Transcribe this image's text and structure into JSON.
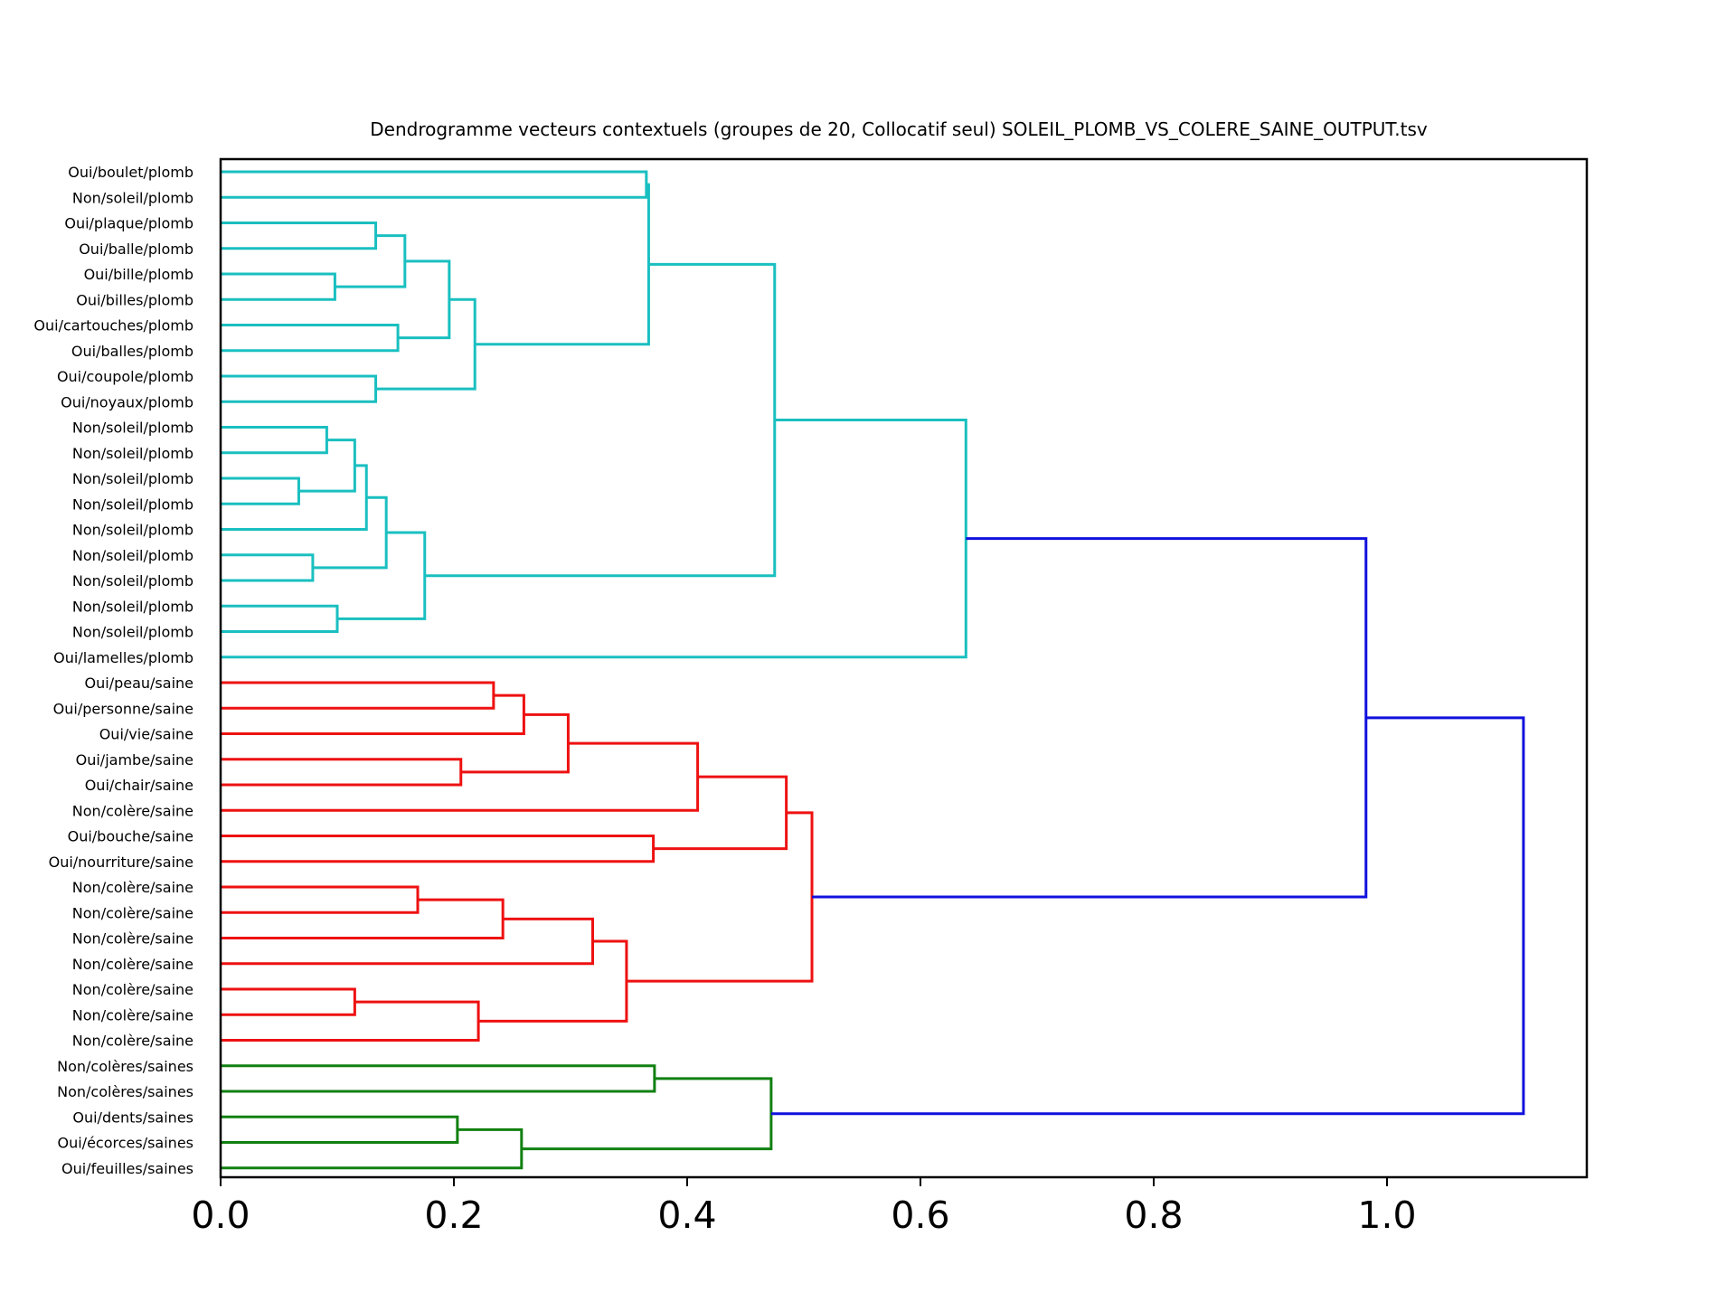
{
  "chart_data": {
    "type": "dendrogram",
    "orientation": "horizontal",
    "title": "Dendrogramme vecteurs contextuels (groupes de 20, Collocatif seul) SOLEIL_PLOMB_VS_COLERE_SAINE_OUTPUT.tsv",
    "xlim": [
      0,
      1.17
    ],
    "xticks": [
      "0.0",
      "0.2",
      "0.4",
      "0.6",
      "0.8",
      "1.0"
    ],
    "xtick_values": [
      0,
      0.2,
      0.4,
      0.6,
      0.8,
      1.0
    ],
    "colors": {
      "cyan": "#1abfc0",
      "red": "#ee1111",
      "green": "#118011",
      "blue": "#1111dd"
    },
    "leaves": [
      "Oui/boulet/plomb",
      "Non/soleil/plomb",
      "Oui/plaque/plomb",
      "Oui/balle/plomb",
      "Oui/bille/plomb",
      "Oui/billes/plomb",
      "Oui/cartouches/plomb",
      "Oui/balles/plomb",
      "Oui/coupole/plomb",
      "Oui/noyaux/plomb",
      "Non/soleil/plomb",
      "Non/soleil/plomb",
      "Non/soleil/plomb",
      "Non/soleil/plomb",
      "Non/soleil/plomb",
      "Non/soleil/plomb",
      "Non/soleil/plomb",
      "Non/soleil/plomb",
      "Non/soleil/plomb",
      "Oui/lamelles/plomb",
      "Oui/peau/saine",
      "Oui/personne/saine",
      "Oui/vie/saine",
      "Oui/jambe/saine",
      "Oui/chair/saine",
      "Non/colère/saine",
      "Oui/bouche/saine",
      "Oui/nourriture/saine",
      "Non/colère/saine",
      "Non/colère/saine",
      "Non/colère/saine",
      "Non/colère/saine",
      "Non/colère/saine",
      "Non/colère/saine",
      "Non/colère/saine",
      "Non/colères/saines",
      "Non/colères/saines",
      "Oui/dents/saines",
      "Oui/écorces/saines",
      "Oui/feuilles/saines"
    ],
    "links": [
      {
        "l": 0,
        "r": 1,
        "h": 0.365,
        "c": "cyan"
      },
      {
        "l": 2,
        "r": 3,
        "h": 0.133,
        "c": "cyan"
      },
      {
        "l": 4,
        "r": 5,
        "h": 0.098,
        "c": "cyan"
      },
      {
        "l": "n1",
        "r": "n2",
        "h": 0.158,
        "c": "cyan"
      },
      {
        "l": 6,
        "r": 7,
        "h": 0.152,
        "c": "cyan"
      },
      {
        "l": "n3",
        "r": "n4",
        "h": 0.196,
        "c": "cyan"
      },
      {
        "l": 8,
        "r": 9,
        "h": 0.133,
        "c": "cyan"
      },
      {
        "l": "n5",
        "r": "n6",
        "h": 0.218,
        "c": "cyan"
      },
      {
        "l": "n0",
        "r": "n7",
        "h": 0.367,
        "c": "cyan"
      },
      {
        "l": 10,
        "r": 11,
        "h": 0.091,
        "c": "cyan"
      },
      {
        "l": 12,
        "r": 13,
        "h": 0.067,
        "c": "cyan"
      },
      {
        "l": "n9",
        "r": "n10",
        "h": 0.115,
        "c": "cyan"
      },
      {
        "l": "n11",
        "r": 14,
        "h": 0.125,
        "c": "cyan"
      },
      {
        "l": 15,
        "r": 16,
        "h": 0.079,
        "c": "cyan"
      },
      {
        "l": "n12",
        "r": "n13",
        "h": 0.142,
        "c": "cyan"
      },
      {
        "l": 17,
        "r": 18,
        "h": 0.1,
        "c": "cyan"
      },
      {
        "l": "n14",
        "r": "n15",
        "h": 0.175,
        "c": "cyan"
      },
      {
        "l": "n8",
        "r": "n16",
        "h": 0.475,
        "c": "cyan"
      },
      {
        "l": "n17",
        "r": 19,
        "h": 0.639,
        "c": "cyan"
      },
      {
        "l": 20,
        "r": 21,
        "h": 0.234,
        "c": "red"
      },
      {
        "l": "n19",
        "r": 22,
        "h": 0.26,
        "c": "red"
      },
      {
        "l": 23,
        "r": 24,
        "h": 0.206,
        "c": "red"
      },
      {
        "l": "n20",
        "r": "n21",
        "h": 0.298,
        "c": "red"
      },
      {
        "l": "n22",
        "r": 25,
        "h": 0.409,
        "c": "red"
      },
      {
        "l": 26,
        "r": 27,
        "h": 0.371,
        "c": "red"
      },
      {
        "l": "n23",
        "r": "n24",
        "h": 0.485,
        "c": "red"
      },
      {
        "l": 28,
        "r": 29,
        "h": 0.169,
        "c": "red"
      },
      {
        "l": "n26",
        "r": 30,
        "h": 0.242,
        "c": "red"
      },
      {
        "l": "n27",
        "r": 31,
        "h": 0.319,
        "c": "red"
      },
      {
        "l": 32,
        "r": 33,
        "h": 0.115,
        "c": "red"
      },
      {
        "l": "n29",
        "r": 34,
        "h": 0.221,
        "c": "red"
      },
      {
        "l": "n28",
        "r": "n30",
        "h": 0.348,
        "c": "red"
      },
      {
        "l": "n25",
        "r": "n31",
        "h": 0.507,
        "c": "red"
      },
      {
        "l": "n18",
        "r": "n32",
        "h": 0.982,
        "c": "blue"
      },
      {
        "l": 35,
        "r": 36,
        "h": 0.372,
        "c": "green"
      },
      {
        "l": 37,
        "r": 38,
        "h": 0.203,
        "c": "green"
      },
      {
        "l": "n35",
        "r": 39,
        "h": 0.258,
        "c": "green"
      },
      {
        "l": "n34",
        "r": "n36",
        "h": 0.472,
        "c": "green"
      },
      {
        "l": "n33",
        "r": "n37",
        "h": 1.117,
        "c": "blue"
      }
    ]
  }
}
